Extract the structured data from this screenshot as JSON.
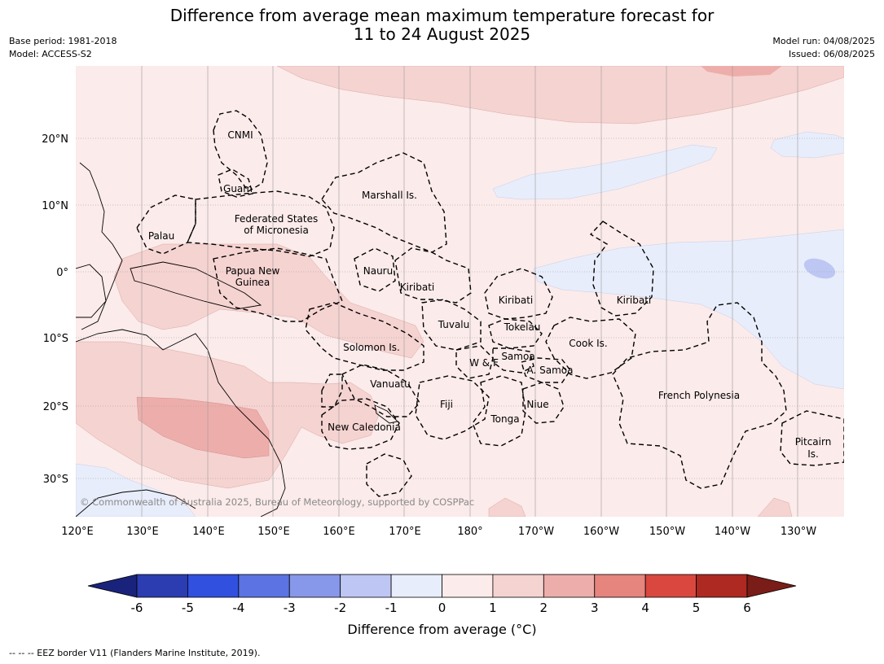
{
  "title": {
    "line1": "Difference from average mean maximum temperature forecast for",
    "line2": "11 to 24 August 2025"
  },
  "meta": {
    "base_period": "Base period: 1981-2018",
    "model": "Model: ACCESS-S2",
    "model_run": "Model run: 04/08/2025",
    "issued": "Issued: 06/08/2025"
  },
  "map": {
    "lat_labels": [
      "20°N",
      "10°N",
      "0°",
      "10°S",
      "20°S",
      "30°S"
    ],
    "lon_labels": [
      "120°E",
      "130°E",
      "140°E",
      "150°E",
      "160°E",
      "170°E",
      "180°",
      "170°W",
      "160°W",
      "150°W",
      "140°W",
      "130°W"
    ],
    "region_labels": [
      {
        "text": "CNMI"
      },
      {
        "text": "Guam"
      },
      {
        "text": "Marshall Is."
      },
      {
        "text": "Federated States"
      },
      {
        "text": "of Micronesia"
      },
      {
        "text": "Palau"
      },
      {
        "text": "Papua New"
      },
      {
        "text": "Guinea"
      },
      {
        "text": "Nauru"
      },
      {
        "text": "Kiribati"
      },
      {
        "text": "Kiribati"
      },
      {
        "text": "Kiribati"
      },
      {
        "text": "Tuvalu"
      },
      {
        "text": "Tokelau"
      },
      {
        "text": "Cook Is."
      },
      {
        "text": "Solomon Is."
      },
      {
        "text": "Samoa"
      },
      {
        "text": "W & F"
      },
      {
        "text": "A. Samoa"
      },
      {
        "text": "Vanuatu"
      },
      {
        "text": "Fiji"
      },
      {
        "text": "Niue"
      },
      {
        "text": "French Polynesia"
      },
      {
        "text": "Tonga"
      },
      {
        "text": "New Caledonia"
      },
      {
        "text": "Pitcairn"
      },
      {
        "text": "Is."
      }
    ],
    "copyright": "© Commonwealth of Australia 2025, Bureau of Meteorology, supported by COSPPac"
  },
  "colorbar": {
    "ticks": [
      "-6",
      "-5",
      "-4",
      "-3",
      "-2",
      "-1",
      "0",
      "1",
      "2",
      "3",
      "4",
      "5",
      "6"
    ],
    "colors": [
      "#1a237b",
      "#2b3db1",
      "#3150df",
      "#5b73e3",
      "#8797ea",
      "#bec7f3",
      "#e8edfb",
      "#fbebea",
      "#f5d3d1",
      "#edaeab",
      "#e6847e",
      "#d9473f",
      "#ad2921",
      "#7a1c18"
    ],
    "title": "Difference from average (°C)"
  },
  "footnote": "-- -- -- EEZ border V11 (Flanders Marine Institute, 2019)."
}
